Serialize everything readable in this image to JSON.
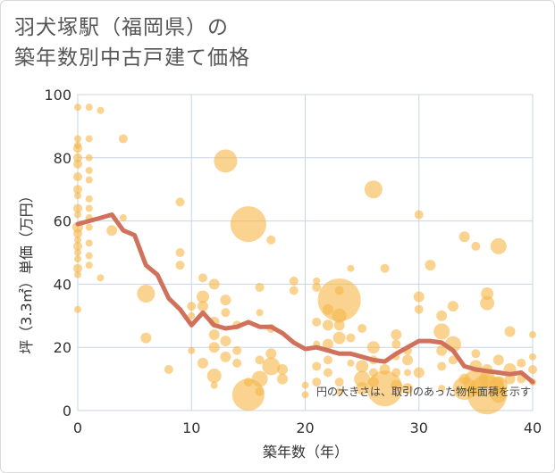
{
  "title_line1": "羽犬塚駅（福岡県）の",
  "title_line2": "築年数別中古戸建て価格",
  "chart_data": {
    "type": "scatter",
    "title": "羽犬塚駅（福岡県）の 築年数別中古戸建て価格",
    "xlabel": "築年数（年）",
    "ylabel": "坪（3.3㎡）単価（万円）",
    "xlim": [
      0,
      40
    ],
    "ylim": [
      0,
      100
    ],
    "xticks": [
      "0",
      "10",
      "20",
      "30",
      "40"
    ],
    "yticks": [
      "0",
      "20",
      "40",
      "60",
      "80",
      "100"
    ],
    "note": "円の大きさは、取引のあった物件面積を示す",
    "colors": {
      "bubble": "#f5b84a",
      "line": "#d0715c",
      "grid": "#c9d5e3"
    },
    "points": [
      [
        0,
        96,
        4
      ],
      [
        1,
        96,
        4
      ],
      [
        2,
        95,
        4
      ],
      [
        0,
        86,
        4
      ],
      [
        1,
        86,
        4
      ],
      [
        0,
        84,
        4
      ],
      [
        0,
        83,
        5
      ],
      [
        0,
        80,
        5
      ],
      [
        1,
        80,
        4
      ],
      [
        0,
        78,
        5
      ],
      [
        1,
        76,
        4
      ],
      [
        0,
        74,
        5
      ],
      [
        1,
        73,
        4
      ],
      [
        0,
        70,
        5
      ],
      [
        0,
        68,
        4
      ],
      [
        1,
        67,
        4
      ],
      [
        0,
        64,
        5
      ],
      [
        1,
        64,
        4
      ],
      [
        0,
        62,
        4
      ],
      [
        1,
        61,
        4
      ],
      [
        0,
        58,
        6
      ],
      [
        1,
        58,
        4
      ],
      [
        0,
        56,
        5
      ],
      [
        0,
        54,
        4
      ],
      [
        1,
        53,
        4
      ],
      [
        0,
        52,
        5
      ],
      [
        0,
        50,
        4
      ],
      [
        1,
        49,
        4
      ],
      [
        0,
        48,
        4
      ],
      [
        1,
        46,
        4
      ],
      [
        0,
        45,
        5
      ],
      [
        0,
        43,
        4
      ],
      [
        2,
        42,
        4
      ],
      [
        0,
        32,
        4
      ],
      [
        3,
        57,
        6
      ],
      [
        4,
        61,
        4
      ],
      [
        4,
        86,
        5
      ],
      [
        6,
        37,
        10
      ],
      [
        6,
        23,
        6
      ],
      [
        9,
        66,
        5
      ],
      [
        9,
        50,
        5
      ],
      [
        9,
        46,
        5
      ],
      [
        8,
        13,
        5
      ],
      [
        10,
        33,
        5
      ],
      [
        10,
        30,
        4
      ],
      [
        10,
        19,
        4
      ],
      [
        11,
        42,
        5
      ],
      [
        11,
        36,
        7
      ],
      [
        11,
        33,
        6
      ],
      [
        11,
        15,
        6
      ],
      [
        12,
        40,
        6
      ],
      [
        12,
        28,
        6
      ],
      [
        12,
        24,
        6
      ],
      [
        12,
        20,
        6
      ],
      [
        12,
        11,
        8
      ],
      [
        12,
        8,
        4
      ],
      [
        13,
        79,
        13
      ],
      [
        13,
        31,
        5
      ],
      [
        13,
        35,
        6
      ],
      [
        13,
        22,
        6
      ],
      [
        13,
        17,
        6
      ],
      [
        14,
        27,
        5
      ],
      [
        14,
        19,
        5
      ],
      [
        14,
        15,
        5
      ],
      [
        15,
        59,
        20
      ],
      [
        15,
        9,
        5
      ],
      [
        15,
        5,
        18
      ],
      [
        16,
        39,
        5
      ],
      [
        16,
        31,
        4
      ],
      [
        16,
        16,
        5
      ],
      [
        16,
        10,
        9
      ],
      [
        16,
        6,
        5
      ],
      [
        17,
        54,
        5
      ],
      [
        17,
        26,
        5
      ],
      [
        17,
        18,
        6
      ],
      [
        17,
        14,
        10
      ],
      [
        18,
        13,
        6
      ],
      [
        18,
        10,
        6
      ],
      [
        19,
        41,
        5
      ],
      [
        19,
        38,
        5
      ],
      [
        20,
        8,
        4
      ],
      [
        20,
        5,
        4
      ],
      [
        21,
        41,
        4
      ],
      [
        21,
        39,
        5
      ],
      [
        21,
        28,
        5
      ],
      [
        21,
        21,
        4
      ],
      [
        21,
        14,
        5
      ],
      [
        21,
        9,
        5
      ],
      [
        22,
        32,
        6
      ],
      [
        22,
        27,
        6
      ],
      [
        22,
        21,
        6
      ],
      [
        22,
        16,
        5
      ],
      [
        22,
        12,
        5
      ],
      [
        23,
        35,
        24
      ],
      [
        23,
        38,
        5
      ],
      [
        23,
        30,
        8
      ],
      [
        23,
        27,
        6
      ],
      [
        23,
        23,
        7
      ],
      [
        23,
        9,
        5
      ],
      [
        23,
        6,
        4
      ],
      [
        24,
        45,
        4
      ],
      [
        24,
        23,
        5
      ],
      [
        24,
        15,
        4
      ],
      [
        25,
        26,
        5
      ],
      [
        25,
        14,
        7
      ],
      [
        25,
        10,
        9
      ],
      [
        25,
        7,
        7
      ],
      [
        26,
        70,
        10
      ],
      [
        26,
        20,
        7
      ],
      [
        26,
        16,
        5
      ],
      [
        26,
        12,
        5
      ],
      [
        26,
        9,
        6
      ],
      [
        27,
        45,
        5
      ],
      [
        27,
        13,
        6
      ],
      [
        27,
        7,
        20
      ],
      [
        28,
        24,
        6
      ],
      [
        28,
        21,
        5
      ],
      [
        28,
        17,
        4
      ],
      [
        28,
        12,
        5
      ],
      [
        28,
        8,
        6
      ],
      [
        29,
        19,
        5
      ],
      [
        29,
        16,
        6
      ],
      [
        29,
        12,
        4
      ],
      [
        29,
        7,
        6
      ],
      [
        30,
        62,
        5
      ],
      [
        30,
        36,
        6
      ],
      [
        30,
        32,
        5
      ],
      [
        30,
        12,
        6
      ],
      [
        31,
        46,
        6
      ],
      [
        32,
        30,
        6
      ],
      [
        32,
        25,
        9
      ],
      [
        32,
        19,
        6
      ],
      [
        32,
        14,
        5
      ],
      [
        32,
        7,
        4
      ],
      [
        33,
        33,
        6
      ],
      [
        33,
        21,
        9
      ],
      [
        33,
        16,
        5
      ],
      [
        34,
        55,
        6
      ],
      [
        34,
        10,
        6
      ],
      [
        34,
        7,
        13
      ],
      [
        35,
        52,
        5
      ],
      [
        35,
        18,
        5
      ],
      [
        35,
        14,
        7
      ],
      [
        35,
        9,
        14
      ],
      [
        35,
        6,
        5
      ],
      [
        36,
        37,
        7
      ],
      [
        36,
        34,
        8
      ],
      [
        36,
        13,
        6
      ],
      [
        36,
        10,
        9
      ],
      [
        36,
        5,
        22
      ],
      [
        37,
        52,
        9
      ],
      [
        37,
        16,
        6
      ],
      [
        37,
        9,
        6
      ],
      [
        37,
        5,
        9
      ],
      [
        38,
        25,
        6
      ],
      [
        38,
        13,
        7
      ],
      [
        38,
        10,
        6
      ],
      [
        39,
        15,
        5
      ],
      [
        39,
        10,
        5
      ],
      [
        40,
        24,
        4
      ],
      [
        40,
        17,
        4
      ],
      [
        40,
        13,
        5
      ],
      [
        40,
        9,
        4
      ],
      [
        37,
        8,
        10
      ]
    ],
    "trend": [
      [
        0,
        59
      ],
      [
        1,
        60
      ],
      [
        2,
        61
      ],
      [
        3,
        62
      ],
      [
        4,
        57
      ],
      [
        5,
        55.5
      ],
      [
        6,
        46
      ],
      [
        7,
        43
      ],
      [
        8,
        35.5
      ],
      [
        9,
        32
      ],
      [
        10,
        27
      ],
      [
        11,
        31
      ],
      [
        12,
        27
      ],
      [
        13,
        26
      ],
      [
        14,
        26.5
      ],
      [
        15,
        28
      ],
      [
        16,
        26.5
      ],
      [
        17,
        26.5
      ],
      [
        18,
        24.5
      ],
      [
        19,
        21.5
      ],
      [
        20,
        19.5
      ],
      [
        21,
        20
      ],
      [
        22,
        19
      ],
      [
        23,
        18
      ],
      [
        24,
        18
      ],
      [
        25,
        17
      ],
      [
        26,
        16
      ],
      [
        27,
        15.5
      ],
      [
        28,
        18
      ],
      [
        29,
        20
      ],
      [
        30,
        22
      ],
      [
        31,
        22
      ],
      [
        32,
        21.5
      ],
      [
        33,
        19
      ],
      [
        34,
        14
      ],
      [
        35,
        13
      ],
      [
        36,
        12.5
      ],
      [
        37,
        12
      ],
      [
        38,
        11.5
      ],
      [
        39,
        12
      ],
      [
        40,
        9
      ]
    ]
  }
}
